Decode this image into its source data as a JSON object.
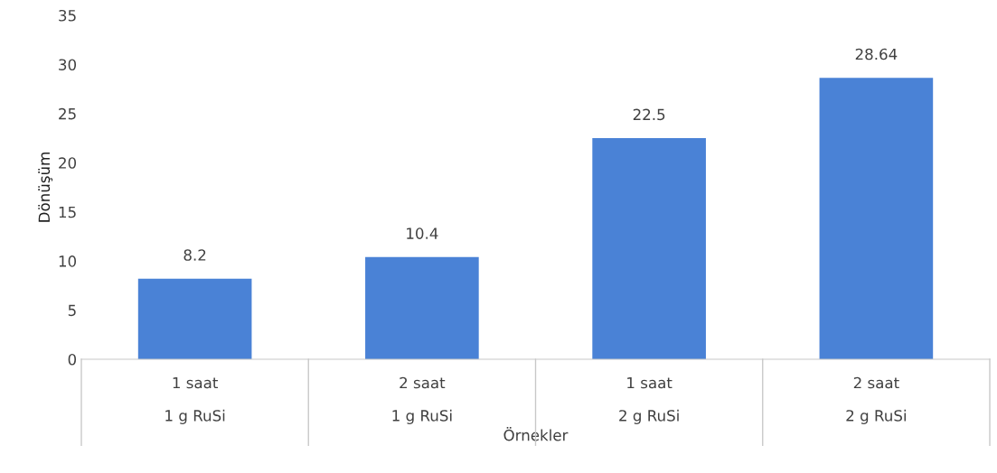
{
  "chart_data": {
    "type": "bar",
    "xlabel": "Örnekler",
    "ylabel": "Dönüşüm",
    "categories": [
      "1 saat\n1 g RuSi",
      "2 saat\n1 g RuSi",
      "1 saat\n2 g RuSi",
      "2 saat\n2 g RuSi"
    ],
    "values": [
      8.2,
      10.4,
      22.5,
      28.64
    ],
    "color": "#4a82d6",
    "ylim": [
      0,
      35
    ],
    "yticks": [
      0,
      5,
      10,
      15,
      20,
      25,
      30,
      35
    ],
    "grid": false,
    "data_labels": true
  }
}
